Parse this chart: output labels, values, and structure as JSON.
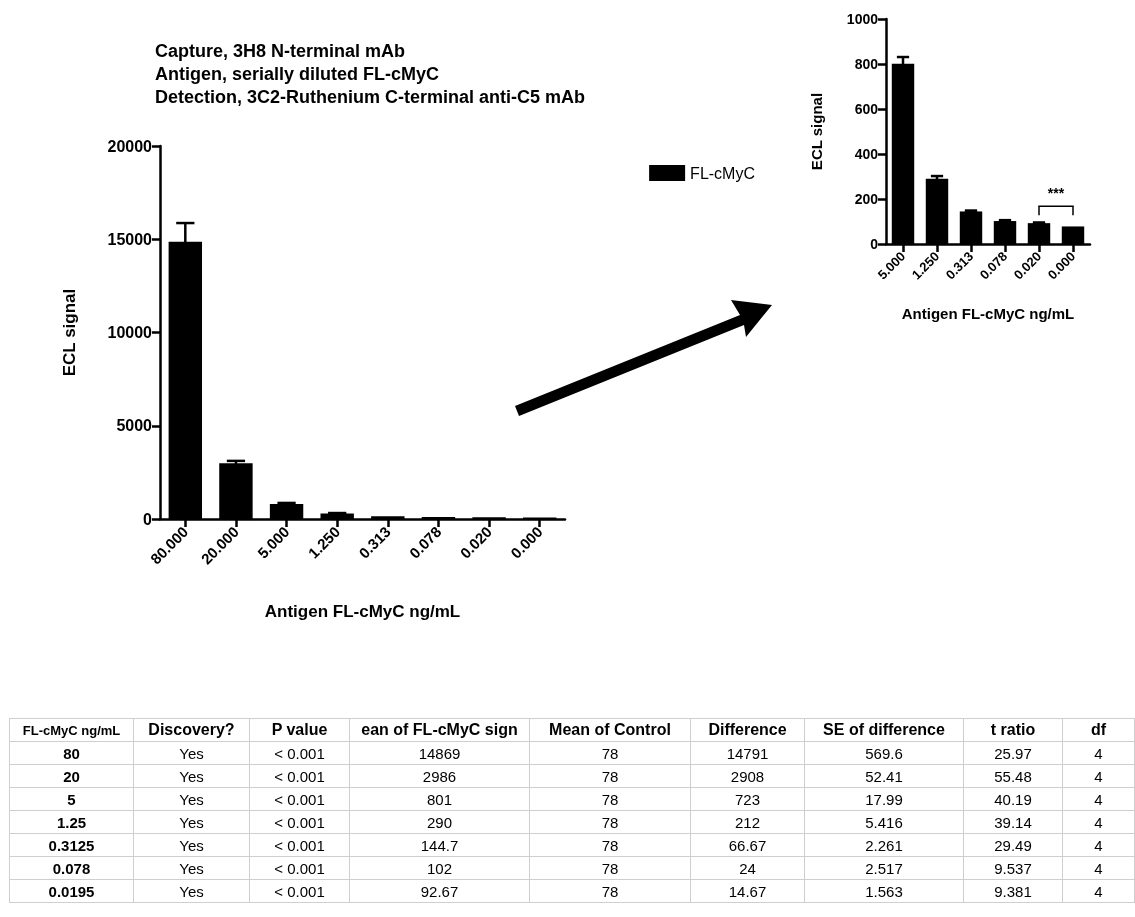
{
  "chart_data": [
    {
      "type": "bar",
      "title": "Capture, 3H8 N-terminal mAb\nAntigen, serially diluted FL-cMyC\nDetection, 3C2-Ruthenium C-terminal anti-C5 mAb",
      "xlabel": "Antigen FL-cMyC ng/mL",
      "ylabel": "ECL signal",
      "categories": [
        "80.000",
        "20.000",
        "5.000",
        "1.250",
        "0.313",
        "0.078",
        "0.020",
        "0.000"
      ],
      "series": [
        {
          "name": "FL-cMyC",
          "color": "#000000",
          "values": [
            14869,
            2986,
            801,
            290,
            144.7,
            102,
            92.67,
            78
          ],
          "errors": [
            1000,
            130,
            60,
            30,
            null,
            null,
            null,
            null
          ]
        }
      ],
      "ylim": [
        0,
        20000
      ],
      "yticks": [
        0,
        5000,
        10000,
        15000,
        20000
      ],
      "legend": "top right"
    },
    {
      "type": "bar",
      "xlabel": "Antigen FL-cMyC ng/mL",
      "ylabel": "ECL signal",
      "categories": [
        "5.000",
        "1.250",
        "0.313",
        "0.078",
        "0.020",
        "0.000"
      ],
      "values": [
        801,
        290,
        144.7,
        102,
        92.67,
        78
      ],
      "errors": [
        30,
        12,
        4,
        4,
        3,
        null
      ],
      "color": "#000000",
      "ylim": [
        0,
        1000
      ],
      "yticks": [
        0,
        200,
        400,
        600,
        800,
        1000
      ],
      "annotations": [
        "***"
      ]
    },
    {
      "type": "other",
      "categories": [
        "FL-cMyC ng/mL",
        "Discovery?",
        "P value",
        "ean of FL-cMyC sign",
        "Mean of Control",
        "Difference",
        "SE of difference",
        "t ratio",
        "df"
      ],
      "cell_labels": [
        [
          "80",
          "Yes",
          "< 0.001",
          "14869",
          "78",
          "14791",
          "569.6",
          "25.97",
          "4"
        ],
        [
          "20",
          "Yes",
          "< 0.001",
          "2986",
          "78",
          "2908",
          "52.41",
          "55.48",
          "4"
        ],
        [
          "5",
          "Yes",
          "< 0.001",
          "801",
          "78",
          "723",
          "17.99",
          "40.19",
          "4"
        ],
        [
          "1.25",
          "Yes",
          "< 0.001",
          "290",
          "78",
          "212",
          "5.416",
          "39.14",
          "4"
        ],
        [
          "0.3125",
          "Yes",
          "< 0.001",
          "144.7",
          "78",
          "66.67",
          "2.261",
          "29.49",
          "4"
        ],
        [
          "0.078",
          "Yes",
          "< 0.001",
          "102",
          "78",
          "24",
          "2.517",
          "9.537",
          "4"
        ],
        [
          "0.0195",
          "Yes",
          "< 0.001",
          "92.67",
          "78",
          "14.67",
          "1.563",
          "9.381",
          "4"
        ]
      ]
    }
  ]
}
